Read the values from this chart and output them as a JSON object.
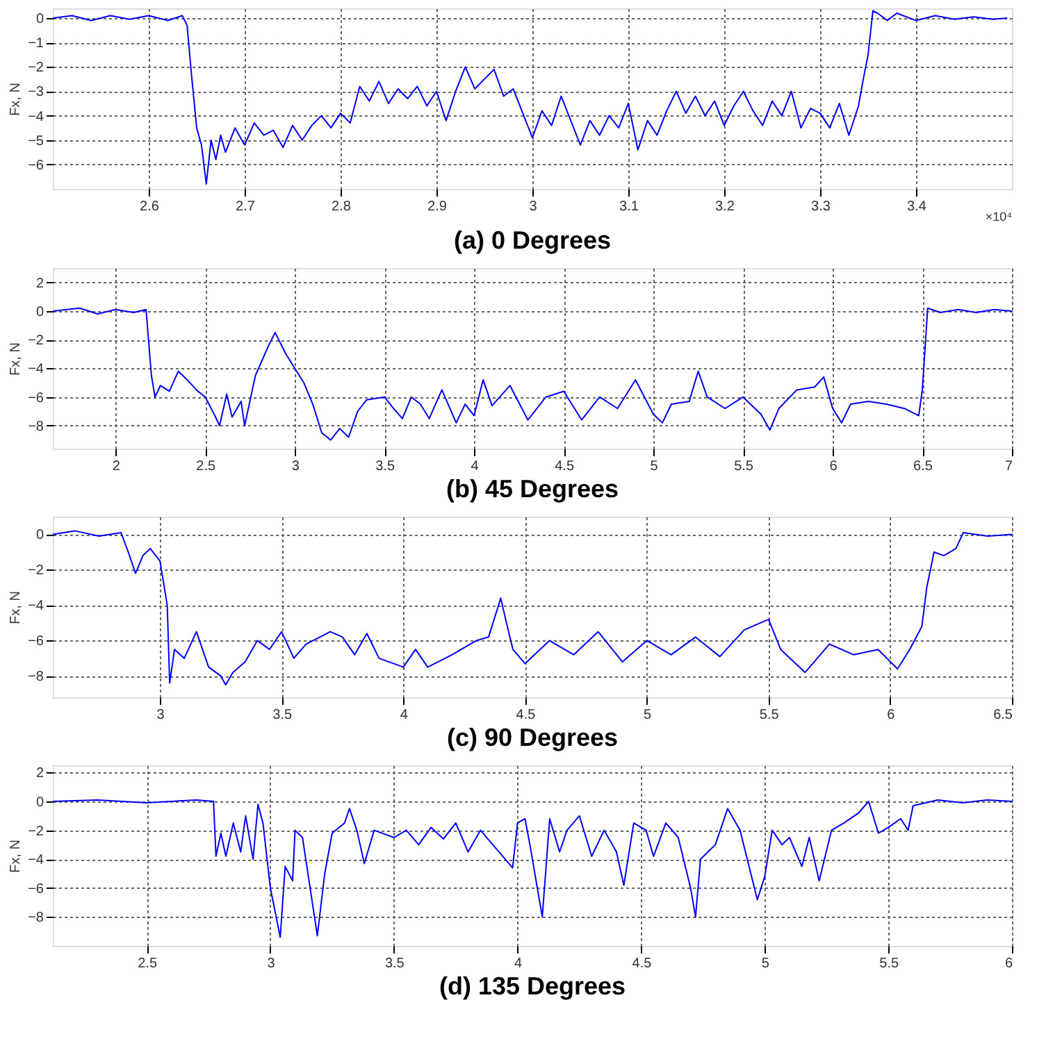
{
  "chart_data": [
    {
      "type": "line",
      "title": "(a) 0 Degrees",
      "ylabel": "Fx, N",
      "xlim": [
        2.5,
        3.5
      ],
      "xticks": [
        2.6,
        2.7,
        2.8,
        2.9,
        3,
        3.1,
        3.2,
        3.3,
        3.4
      ],
      "ylim": [
        -7,
        0.4
      ],
      "yticks": [
        -6,
        -5,
        -4,
        -3,
        -2,
        -1,
        0
      ],
      "grid": true,
      "line_style": "solid",
      "marker": "none",
      "annotations": [
        "×10⁴"
      ],
      "x": [
        2.5,
        2.52,
        2.54,
        2.56,
        2.58,
        2.6,
        2.62,
        2.635,
        2.64,
        2.645,
        2.65,
        2.655,
        2.66,
        2.665,
        2.67,
        2.675,
        2.68,
        2.69,
        2.7,
        2.71,
        2.72,
        2.73,
        2.74,
        2.75,
        2.76,
        2.77,
        2.78,
        2.79,
        2.8,
        2.81,
        2.82,
        2.83,
        2.84,
        2.85,
        2.86,
        2.87,
        2.88,
        2.89,
        2.9,
        2.91,
        2.92,
        2.93,
        2.94,
        2.95,
        2.96,
        2.97,
        2.98,
        2.99,
        3.0,
        3.01,
        3.02,
        3.03,
        3.04,
        3.05,
        3.06,
        3.07,
        3.08,
        3.09,
        3.1,
        3.11,
        3.12,
        3.13,
        3.14,
        3.15,
        3.16,
        3.17,
        3.18,
        3.19,
        3.2,
        3.21,
        3.22,
        3.23,
        3.24,
        3.25,
        3.26,
        3.27,
        3.28,
        3.29,
        3.3,
        3.31,
        3.32,
        3.33,
        3.34,
        3.345,
        3.35,
        3.355,
        3.36,
        3.37,
        3.38,
        3.4,
        3.42,
        3.44,
        3.46,
        3.48,
        3.495
      ],
      "series": [
        {
          "color": "#0000ff",
          "values": [
            0,
            0.1,
            -0.1,
            0.1,
            -0.05,
            0.1,
            -0.1,
            0.1,
            -0.3,
            -2.5,
            -4.5,
            -5.2,
            -6.8,
            -5.0,
            -5.8,
            -4.8,
            -5.5,
            -4.5,
            -5.2,
            -4.3,
            -4.8,
            -4.6,
            -5.3,
            -4.4,
            -5.0,
            -4.4,
            -4.0,
            -4.5,
            -3.9,
            -4.3,
            -2.8,
            -3.4,
            -2.6,
            -3.5,
            -2.9,
            -3.3,
            -2.8,
            -3.6,
            -3.0,
            -4.2,
            -3.0,
            -2.0,
            -2.9,
            -2.5,
            -2.1,
            -3.2,
            -2.9,
            -3.9,
            -4.9,
            -3.8,
            -4.4,
            -3.2,
            -4.2,
            -5.2,
            -4.2,
            -4.8,
            -4.0,
            -4.5,
            -3.5,
            -5.4,
            -4.2,
            -4.8,
            -3.8,
            -3.0,
            -3.9,
            -3.2,
            -4.0,
            -3.4,
            -4.4,
            -3.6,
            -3.0,
            -3.8,
            -4.4,
            -3.4,
            -4.0,
            -3.0,
            -4.5,
            -3.7,
            -3.9,
            -4.5,
            -3.5,
            -4.8,
            -3.6,
            -2.5,
            -1.5,
            0.3,
            0.2,
            -0.1,
            0.2,
            -0.1,
            0.1,
            -0.05,
            0.05,
            -0.05,
            0
          ]
        }
      ]
    },
    {
      "type": "line",
      "title": "(b) 45 Degrees",
      "ylabel": "Fx, N",
      "xlim": [
        1.65,
        7
      ],
      "xticks": [
        2,
        2.5,
        3,
        3.5,
        4,
        4.5,
        5,
        5.5,
        6,
        6.5,
        7
      ],
      "ylim": [
        -9.6,
        3
      ],
      "yticks": [
        -8,
        -6,
        -4,
        -2,
        0,
        2
      ],
      "grid": true,
      "line_style": "solid",
      "marker": "none",
      "x": [
        1.65,
        1.8,
        1.9,
        2.0,
        2.1,
        2.17,
        2.2,
        2.22,
        2.25,
        2.3,
        2.35,
        2.4,
        2.45,
        2.5,
        2.55,
        2.58,
        2.62,
        2.65,
        2.7,
        2.72,
        2.78,
        2.85,
        2.89,
        2.95,
        3.0,
        3.05,
        3.1,
        3.15,
        3.2,
        3.25,
        3.3,
        3.35,
        3.4,
        3.5,
        3.55,
        3.6,
        3.65,
        3.7,
        3.75,
        3.82,
        3.9,
        3.95,
        4.0,
        4.05,
        4.1,
        4.2,
        4.3,
        4.4,
        4.5,
        4.6,
        4.7,
        4.8,
        4.9,
        5.0,
        5.05,
        5.1,
        5.2,
        5.25,
        5.3,
        5.4,
        5.5,
        5.6,
        5.65,
        5.7,
        5.8,
        5.9,
        5.95,
        6.0,
        6.05,
        6.1,
        6.2,
        6.3,
        6.4,
        6.48,
        6.5,
        6.53,
        6.6,
        6.7,
        6.8,
        6.9,
        7.0
      ],
      "series": [
        {
          "color": "#0000ff",
          "values": [
            0,
            0.2,
            -0.2,
            0.1,
            -0.1,
            0.1,
            -4.5,
            -6.0,
            -5.2,
            -5.6,
            -4.2,
            -4.8,
            -5.5,
            -6.0,
            -7.2,
            -8.0,
            -5.8,
            -7.4,
            -6.3,
            -8.0,
            -4.5,
            -2.5,
            -1.5,
            -3.0,
            -4.0,
            -5.0,
            -6.5,
            -8.5,
            -9.0,
            -8.2,
            -8.8,
            -7.0,
            -6.2,
            -6.0,
            -6.8,
            -7.5,
            -6.0,
            -6.5,
            -7.5,
            -5.5,
            -7.8,
            -6.5,
            -7.3,
            -4.8,
            -6.6,
            -5.2,
            -7.6,
            -6.0,
            -5.6,
            -7.6,
            -6.0,
            -6.8,
            -4.8,
            -7.2,
            -7.8,
            -6.5,
            -6.3,
            -4.2,
            -6.0,
            -6.8,
            -6.0,
            -7.2,
            -8.3,
            -6.8,
            -5.5,
            -5.3,
            -4.6,
            -6.8,
            -7.8,
            -6.5,
            -6.3,
            -6.5,
            -6.8,
            -7.3,
            -5.5,
            0.2,
            -0.1,
            0.1,
            -0.1,
            0.1,
            0
          ]
        }
      ]
    },
    {
      "type": "line",
      "title": "(c) 90 Degrees",
      "ylabel": "Fx, N",
      "xlim": [
        2.56,
        6.5
      ],
      "xticks": [
        3,
        3.5,
        4,
        4.5,
        5,
        5.5,
        6,
        6.5
      ],
      "ylim": [
        -9.2,
        1
      ],
      "yticks": [
        -8,
        -6,
        -4,
        -2,
        0
      ],
      "grid": true,
      "line_style": "solid",
      "marker": "none",
      "x": [
        2.56,
        2.65,
        2.75,
        2.84,
        2.87,
        2.9,
        2.93,
        2.96,
        3.0,
        3.03,
        3.04,
        3.06,
        3.1,
        3.15,
        3.2,
        3.25,
        3.27,
        3.3,
        3.35,
        3.4,
        3.45,
        3.5,
        3.55,
        3.6,
        3.7,
        3.75,
        3.8,
        3.85,
        3.9,
        4.0,
        4.05,
        4.1,
        4.2,
        4.3,
        4.35,
        4.4,
        4.42,
        4.45,
        4.5,
        4.6,
        4.7,
        4.8,
        4.9,
        5.0,
        5.1,
        5.2,
        5.3,
        5.4,
        5.5,
        5.55,
        5.65,
        5.75,
        5.85,
        5.95,
        6.03,
        6.08,
        6.13,
        6.15,
        6.18,
        6.22,
        6.27,
        6.3,
        6.4,
        6.5
      ],
      "series": [
        {
          "color": "#0000ff",
          "values": [
            0,
            0.2,
            -0.1,
            0.1,
            -1.0,
            -2.2,
            -1.2,
            -0.8,
            -1.5,
            -4.0,
            -8.4,
            -6.5,
            -7.0,
            -5.5,
            -7.5,
            -8.0,
            -8.5,
            -7.8,
            -7.2,
            -6.0,
            -6.5,
            -5.5,
            -7.0,
            -6.2,
            -5.5,
            -5.8,
            -6.8,
            -5.6,
            -7.0,
            -7.5,
            -6.5,
            -7.5,
            -6.8,
            -6.0,
            -5.8,
            -3.6,
            -4.8,
            -6.5,
            -7.3,
            -6.0,
            -6.8,
            -5.5,
            -7.2,
            -6.0,
            -6.8,
            -5.8,
            -6.9,
            -5.4,
            -4.8,
            -6.5,
            -7.8,
            -6.2,
            -6.8,
            -6.5,
            -7.6,
            -6.5,
            -5.2,
            -3.0,
            -1.0,
            -1.2,
            -0.8,
            0.1,
            -0.1,
            0
          ]
        }
      ]
    },
    {
      "type": "line",
      "title": "(d) 135 Degrees",
      "ylabel": "Fx, N",
      "xlim": [
        2.12,
        6
      ],
      "xticks": [
        2.5,
        3,
        3.5,
        4,
        4.5,
        5,
        5.5,
        6
      ],
      "ylim": [
        -10,
        2.5
      ],
      "yticks": [
        -8,
        -6,
        -4,
        -2,
        0,
        2
      ],
      "grid": true,
      "line_style": "solid",
      "marker": "none",
      "x": [
        2.12,
        2.3,
        2.5,
        2.7,
        2.77,
        2.78,
        2.8,
        2.82,
        2.85,
        2.88,
        2.9,
        2.93,
        2.95,
        2.97,
        3.0,
        3.04,
        3.06,
        3.09,
        3.1,
        3.13,
        3.19,
        3.22,
        3.25,
        3.3,
        3.32,
        3.35,
        3.38,
        3.42,
        3.5,
        3.55,
        3.6,
        3.65,
        3.7,
        3.75,
        3.8,
        3.85,
        3.9,
        3.98,
        4.0,
        4.03,
        4.05,
        4.1,
        4.13,
        4.17,
        4.2,
        4.25,
        4.3,
        4.35,
        4.4,
        4.43,
        4.47,
        4.52,
        4.55,
        4.6,
        4.65,
        4.7,
        4.72,
        4.74,
        4.8,
        4.85,
        4.9,
        4.97,
        5.0,
        5.03,
        5.07,
        5.1,
        5.15,
        5.18,
        5.22,
        5.27,
        5.32,
        5.38,
        5.42,
        5.46,
        5.5,
        5.55,
        5.58,
        5.6,
        5.7,
        5.8,
        5.9,
        6.0
      ],
      "series": [
        {
          "color": "#0000ff",
          "values": [
            0,
            0.1,
            -0.1,
            0.1,
            0,
            -3.8,
            -2.2,
            -3.8,
            -1.5,
            -3.5,
            -1.0,
            -4.0,
            -0.2,
            -1.5,
            -6.0,
            -9.4,
            -4.5,
            -5.5,
            -2.0,
            -2.5,
            -9.3,
            -5.0,
            -2.2,
            -1.5,
            -0.5,
            -2.0,
            -4.3,
            -2.0,
            -2.5,
            -2.0,
            -3.0,
            -1.8,
            -2.6,
            -1.5,
            -3.5,
            -2.0,
            -3.0,
            -4.6,
            -1.5,
            -1.2,
            -3.0,
            -8.0,
            -1.2,
            -3.5,
            -2.0,
            -1.0,
            -3.8,
            -2.0,
            -3.5,
            -5.8,
            -1.5,
            -2.0,
            -3.8,
            -1.5,
            -2.5,
            -6.0,
            -8.0,
            -4.0,
            -3.0,
            -0.5,
            -2.0,
            -6.8,
            -5.2,
            -2.0,
            -3.0,
            -2.5,
            -4.5,
            -2.5,
            -5.5,
            -2.0,
            -1.5,
            -0.8,
            0,
            -2.2,
            -1.8,
            -1.2,
            -2.0,
            -0.3,
            0.1,
            -0.1,
            0.1,
            0
          ]
        }
      ]
    }
  ]
}
